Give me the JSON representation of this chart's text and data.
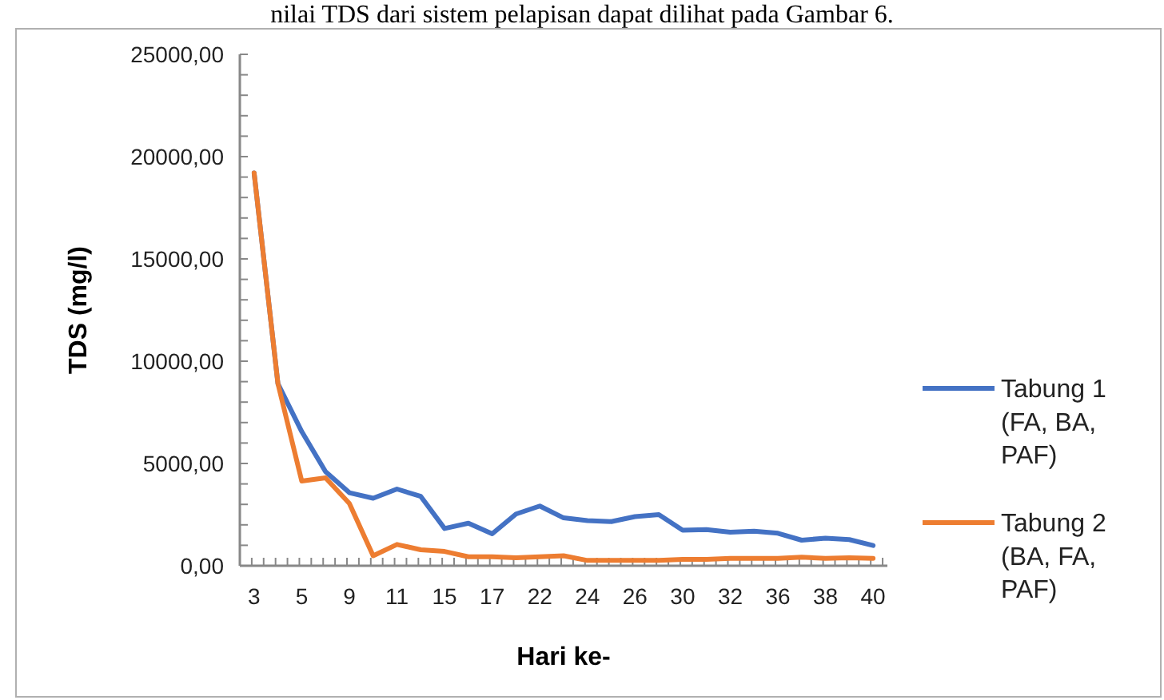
{
  "chart_data": {
    "type": "line",
    "annotations": [
      "nilai TDS dari sistem pelapisan dapat dilihat pada Gambar 6."
    ],
    "xlabel": "Hari ke-",
    "ylabel": "TDS (mg/l)",
    "categories": [
      "3",
      null,
      "5",
      null,
      "9",
      null,
      "11",
      null,
      "15",
      null,
      "17",
      null,
      "22",
      null,
      "24",
      null,
      "26",
      null,
      "30",
      null,
      "32",
      null,
      "36",
      null,
      "38",
      null,
      "40"
    ],
    "series": [
      {
        "name": "Tabung 1 (FA, BA, PAF)",
        "color": "#4472c4",
        "values": [
          19200,
          8900,
          6560,
          4600,
          3570,
          3300,
          3750,
          3390,
          1820,
          2080,
          1560,
          2530,
          2920,
          2340,
          2210,
          2160,
          2400,
          2500,
          1740,
          1770,
          1640,
          1690,
          1590,
          1250,
          1350,
          1280,
          990
        ]
      },
      {
        "name": "Tabung 2 (BA, FA, PAF)",
        "color": "#ed7d31",
        "values": [
          19200,
          8900,
          4140,
          4300,
          3050,
          490,
          1040,
          780,
          700,
          440,
          440,
          390,
          440,
          490,
          260,
          260,
          260,
          260,
          310,
          310,
          360,
          360,
          360,
          420,
          360,
          390,
          360
        ]
      }
    ],
    "ylim": [
      0,
      25000
    ],
    "yticks": [
      {
        "value": 0,
        "label": "0,00"
      },
      {
        "value": 5000,
        "label": "5000,00"
      },
      {
        "value": 10000,
        "label": "10000,00"
      },
      {
        "value": 15000,
        "label": "15000,00"
      },
      {
        "value": 20000,
        "label": "20000,00"
      },
      {
        "value": 25000,
        "label": "25000,00"
      }
    ],
    "grid": false,
    "legend": "right",
    "marker": "none",
    "line_style": "solid"
  }
}
